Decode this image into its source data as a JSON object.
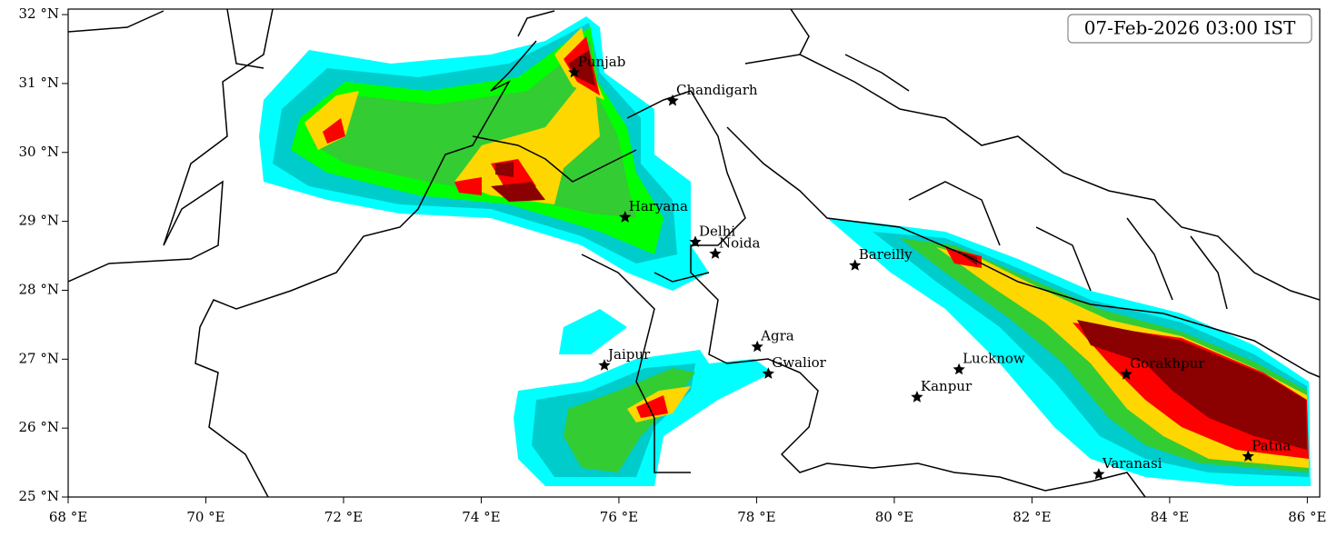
{
  "map": {
    "title": "07-Feb-2026 03:00 IST",
    "xlim": [
      68,
      86.18
    ],
    "ylim": [
      25,
      32.08
    ],
    "xticks": [
      {
        "value": 68,
        "label": "68 °E"
      },
      {
        "value": 70,
        "label": "70 °E"
      },
      {
        "value": 72,
        "label": "72 °E"
      },
      {
        "value": 74,
        "label": "74 °E"
      },
      {
        "value": 76,
        "label": "76 °E"
      },
      {
        "value": 78,
        "label": "78 °E"
      },
      {
        "value": 80,
        "label": "80 °E"
      },
      {
        "value": 82,
        "label": "82 °E"
      },
      {
        "value": 84,
        "label": "84 °E"
      },
      {
        "value": 86,
        "label": "86 °E"
      }
    ],
    "yticks": [
      {
        "value": 25,
        "label": "25 °N"
      },
      {
        "value": 26,
        "label": "26 °N"
      },
      {
        "value": 27,
        "label": "27 °N"
      },
      {
        "value": 28,
        "label": "28 °N"
      },
      {
        "value": 29,
        "label": "29 °N"
      },
      {
        "value": 30,
        "label": "30 °N"
      },
      {
        "value": 31,
        "label": "31 °N"
      },
      {
        "value": 32,
        "label": "32 °N"
      }
    ],
    "cities": [
      {
        "name": "Punjab",
        "lon": 75.35,
        "lat": 31.16
      },
      {
        "name": "Chandigarh",
        "lon": 76.78,
        "lat": 30.75
      },
      {
        "name": "Haryana",
        "lon": 76.09,
        "lat": 29.06
      },
      {
        "name": "Delhi",
        "lon": 77.11,
        "lat": 28.7
      },
      {
        "name": "Noida",
        "lon": 77.4,
        "lat": 28.53
      },
      {
        "name": "Bareilly",
        "lon": 79.43,
        "lat": 28.36
      },
      {
        "name": "Agra",
        "lon": 78.01,
        "lat": 27.18
      },
      {
        "name": "Jaipur",
        "lon": 75.79,
        "lat": 26.91
      },
      {
        "name": "Gwalior",
        "lon": 78.17,
        "lat": 26.79
      },
      {
        "name": "Lucknow",
        "lon": 80.94,
        "lat": 26.85
      },
      {
        "name": "Kanpur",
        "lon": 80.33,
        "lat": 26.45
      },
      {
        "name": "Gorakhpur",
        "lon": 83.37,
        "lat": 26.78
      },
      {
        "name": "Varanasi",
        "lon": 82.97,
        "lat": 25.33
      },
      {
        "name": "Patna",
        "lon": 85.14,
        "lat": 25.59
      }
    ]
  }
}
